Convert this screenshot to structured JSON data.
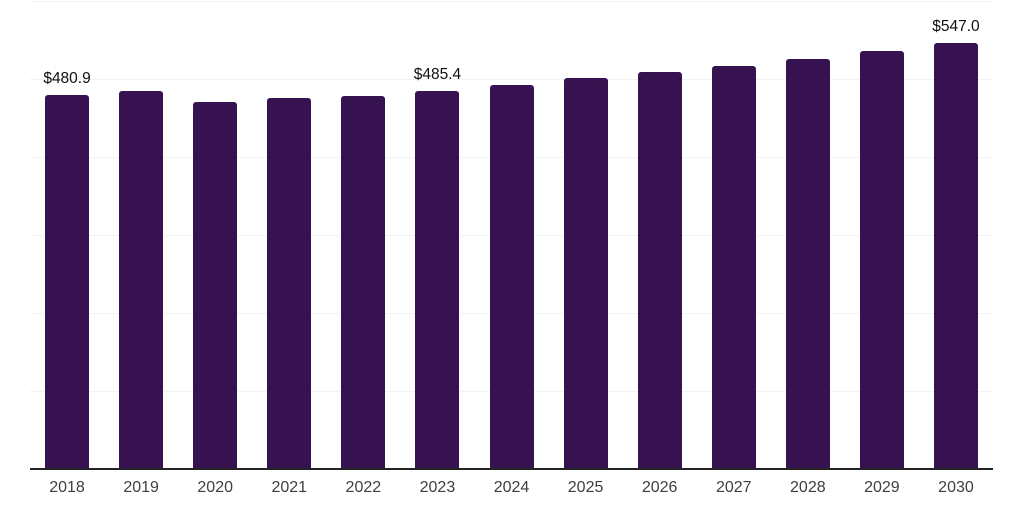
{
  "chart_data": {
    "type": "bar",
    "title": "",
    "xlabel": "",
    "ylabel": "",
    "categories": [
      "2018",
      "2019",
      "2020",
      "2021",
      "2022",
      "2023",
      "2024",
      "2025",
      "2026",
      "2027",
      "2028",
      "2029",
      "2030"
    ],
    "values": [
      480.9,
      486.5,
      472.3,
      476.5,
      479.5,
      485.4,
      493.5,
      502.0,
      510.0,
      518.5,
      527.5,
      537.0,
      547.0
    ],
    "bar_labels": [
      "$480.9",
      "",
      "",
      "",
      "",
      "$485.4",
      "",
      "",
      "",
      "",
      "",
      "",
      "$547.0"
    ],
    "ylim": [
      0,
      600
    ],
    "gridline_step": 100,
    "grid": true,
    "value_axis_labels_visible": false,
    "legend": false
  },
  "colors": {
    "background": "#ffffff",
    "bar": "#371250",
    "gridline": "#f2f2f3",
    "axis_line": "#232323",
    "tick_label": "#3e3e3e",
    "data_label": "#0f0f0f"
  }
}
